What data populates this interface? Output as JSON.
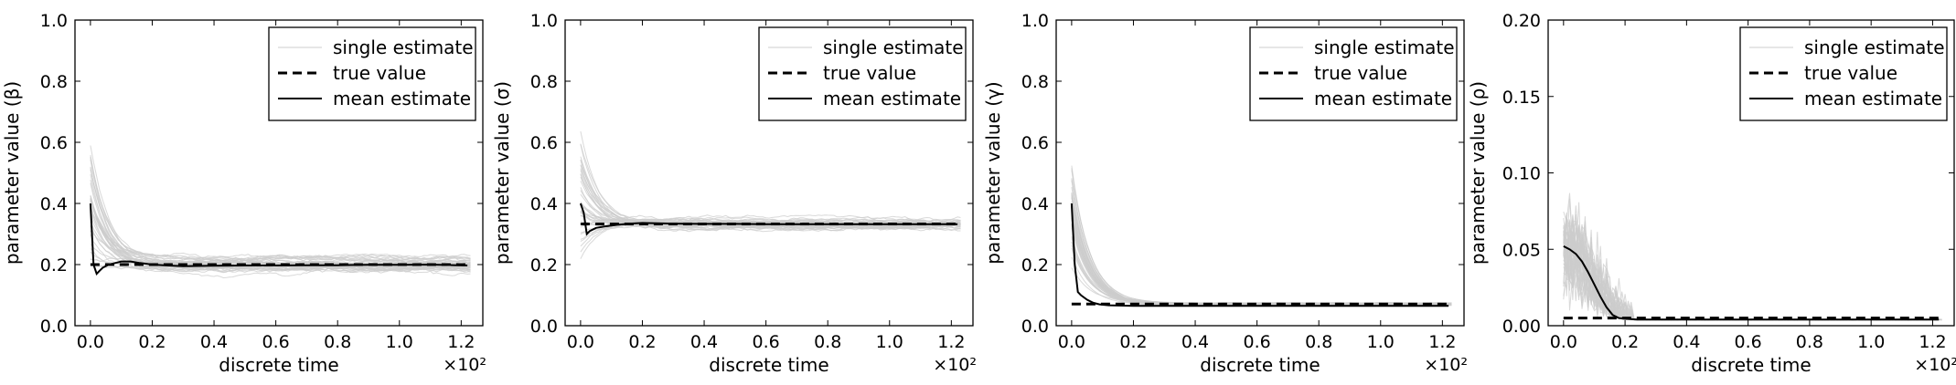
{
  "chart_data": [
    {
      "type": "line",
      "xlabel": "discrete time",
      "ylabel": "parameter value (β)",
      "x_multiplier": "×10²",
      "xlim": [
        -0.05,
        1.27
      ],
      "ylim": [
        0.0,
        1.0
      ],
      "xticks": [
        "0.0",
        "0.2",
        "0.4",
        "0.6",
        "0.8",
        "1.0",
        "1.2"
      ],
      "yticks": [
        "0.0",
        "0.2",
        "0.4",
        "0.6",
        "0.8",
        "1.0"
      ],
      "legend": [
        "single estimate",
        "true value",
        "mean estimate"
      ],
      "legend_position": "top-right",
      "true_value": 0.2,
      "mean_estimate": {
        "x": [
          0.0,
          0.01,
          0.02,
          0.03,
          0.04,
          0.06,
          0.08,
          0.1,
          0.13,
          0.16,
          0.2,
          0.25,
          0.3,
          0.4,
          0.5,
          0.6,
          0.7,
          0.8,
          0.9,
          1.0,
          1.1,
          1.22
        ],
        "y": [
          0.4,
          0.2,
          0.17,
          0.18,
          0.19,
          0.2,
          0.205,
          0.21,
          0.21,
          0.205,
          0.2,
          0.197,
          0.195,
          0.196,
          0.197,
          0.197,
          0.198,
          0.198,
          0.199,
          0.199,
          0.2,
          0.197
        ]
      },
      "single_estimates": {
        "count": 40,
        "start": 0.4,
        "end": 0.2,
        "spread": 0.03,
        "initial_spread": 0.18
      }
    },
    {
      "type": "line",
      "xlabel": "discrete time",
      "ylabel": "parameter value (σ)",
      "x_multiplier": "×10²",
      "xlim": [
        -0.05,
        1.27
      ],
      "ylim": [
        0.0,
        1.0
      ],
      "xticks": [
        "0.0",
        "0.2",
        "0.4",
        "0.6",
        "0.8",
        "1.0",
        "1.2"
      ],
      "yticks": [
        "0.0",
        "0.2",
        "0.4",
        "0.6",
        "0.8",
        "1.0"
      ],
      "legend": [
        "single estimate",
        "true value",
        "mean estimate"
      ],
      "legend_position": "top-right",
      "true_value": 0.333,
      "mean_estimate": {
        "x": [
          0.0,
          0.01,
          0.02,
          0.03,
          0.05,
          0.08,
          0.12,
          0.16,
          0.2,
          0.25,
          0.3,
          0.4,
          0.5,
          0.6,
          0.7,
          0.8,
          0.9,
          1.0,
          1.1,
          1.22
        ],
        "y": [
          0.4,
          0.37,
          0.3,
          0.31,
          0.32,
          0.325,
          0.33,
          0.334,
          0.336,
          0.335,
          0.334,
          0.333,
          0.333,
          0.332,
          0.332,
          0.332,
          0.332,
          0.332,
          0.332,
          0.332
        ]
      },
      "single_estimates": {
        "count": 40,
        "start": 0.4,
        "end": 0.333,
        "spread": 0.025,
        "initial_spread": 0.2
      }
    },
    {
      "type": "line",
      "xlabel": "discrete time",
      "ylabel": "parameter value (γ)",
      "x_multiplier": "×10²",
      "xlim": [
        -0.05,
        1.27
      ],
      "ylim": [
        0.0,
        1.0
      ],
      "xticks": [
        "0.0",
        "0.2",
        "0.4",
        "0.6",
        "0.8",
        "1.0",
        "1.2"
      ],
      "yticks": [
        "0.0",
        "0.2",
        "0.4",
        "0.6",
        "0.8",
        "1.0"
      ],
      "legend": [
        "single estimate",
        "true value",
        "mean estimate"
      ],
      "legend_position": "top-right",
      "true_value": 0.071,
      "mean_estimate": {
        "x": [
          0.0,
          0.01,
          0.02,
          0.03,
          0.05,
          0.07,
          0.09,
          0.12,
          0.15,
          0.2,
          0.3,
          0.4,
          0.6,
          0.8,
          1.0,
          1.22
        ],
        "y": [
          0.4,
          0.2,
          0.11,
          0.1,
          0.085,
          0.075,
          0.07,
          0.067,
          0.066,
          0.065,
          0.065,
          0.065,
          0.065,
          0.065,
          0.065,
          0.065
        ]
      },
      "single_estimates": {
        "count": 40,
        "start": 0.4,
        "end": 0.066,
        "spread": 0.006,
        "initial_spread": 0.15
      }
    },
    {
      "type": "line",
      "xlabel": "discrete time",
      "ylabel": "parameter value (ρ)",
      "x_multiplier": "×10²",
      "xlim": [
        -0.05,
        1.27
      ],
      "ylim": [
        0.0,
        0.2
      ],
      "xticks": [
        "0.0",
        "0.2",
        "0.4",
        "0.6",
        "0.8",
        "1.0",
        "1.2"
      ],
      "yticks": [
        "0.00",
        "0.05",
        "0.10",
        "0.15",
        "0.20"
      ],
      "legend": [
        "single estimate",
        "true value",
        "mean estimate"
      ],
      "legend_position": "top-right",
      "true_value": 0.005,
      "mean_estimate": {
        "x": [
          0.0,
          0.02,
          0.04,
          0.06,
          0.08,
          0.1,
          0.12,
          0.14,
          0.16,
          0.18,
          0.2,
          0.24,
          0.3,
          0.4,
          0.6,
          0.8,
          1.0,
          1.22
        ],
        "y": [
          0.052,
          0.05,
          0.047,
          0.042,
          0.035,
          0.027,
          0.019,
          0.012,
          0.007,
          0.005,
          0.0045,
          0.004,
          0.004,
          0.004,
          0.004,
          0.004,
          0.004,
          0.004
        ]
      },
      "single_estimates": {
        "count": 40,
        "start": 0.05,
        "end": 0.004,
        "spread": 0.0005,
        "initial_spread": 0.05
      }
    }
  ]
}
